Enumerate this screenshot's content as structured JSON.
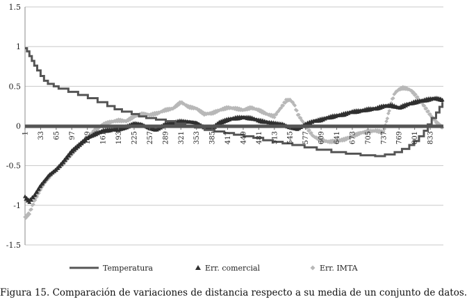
{
  "caption": "Figura 15. Comparación de variaciones de distancia respecto a su media de un conjunto de datos.",
  "chart_data": {
    "type": "line",
    "title": "",
    "xlabel": "",
    "ylabel": "",
    "ylim": [
      -1.5,
      1.5
    ],
    "yticks": [
      "1.5",
      "1",
      "0.5",
      "0",
      "-0.5",
      "-1",
      "-1.5"
    ],
    "xlim": [
      1,
      860
    ],
    "xticks": [
      "1",
      "33",
      "65",
      "97",
      "129",
      "161",
      "193",
      "225",
      "257",
      "289",
      "321",
      "353",
      "385",
      "417",
      "449",
      "481",
      "513",
      "545",
      "577",
      "609",
      "641",
      "673",
      "705",
      "737",
      "769",
      "801",
      "833"
    ],
    "grid": "horizontal",
    "legend": "bottom",
    "colors": {
      "temperatura": "#555555",
      "comercial": "#2f2f2f",
      "imta": "#b8b8b8",
      "baseline": "#555555"
    },
    "series": [
      {
        "name": "Temperatura",
        "marker": "line",
        "points": [
          [
            1,
            0.98
          ],
          [
            5,
            0.94
          ],
          [
            10,
            0.88
          ],
          [
            15,
            0.82
          ],
          [
            20,
            0.76
          ],
          [
            26,
            0.7
          ],
          [
            33,
            0.63
          ],
          [
            40,
            0.57
          ],
          [
            48,
            0.53
          ],
          [
            60,
            0.5
          ],
          [
            70,
            0.47
          ],
          [
            90,
            0.43
          ],
          [
            110,
            0.39
          ],
          [
            130,
            0.35
          ],
          [
            150,
            0.3
          ],
          [
            170,
            0.25
          ],
          [
            185,
            0.21
          ],
          [
            200,
            0.18
          ],
          [
            220,
            0.15
          ],
          [
            235,
            0.12
          ],
          [
            250,
            0.1
          ],
          [
            270,
            0.08
          ],
          [
            290,
            0.06
          ],
          [
            310,
            0.03
          ],
          [
            330,
            0.0
          ],
          [
            350,
            -0.02
          ],
          [
            370,
            -0.05
          ],
          [
            390,
            -0.07
          ],
          [
            410,
            -0.09
          ],
          [
            430,
            -0.11
          ],
          [
            450,
            -0.13
          ],
          [
            470,
            -0.15
          ],
          [
            490,
            -0.18
          ],
          [
            510,
            -0.2
          ],
          [
            530,
            -0.22
          ],
          [
            550,
            -0.24
          ],
          [
            575,
            -0.27
          ],
          [
            600,
            -0.3
          ],
          [
            630,
            -0.33
          ],
          [
            660,
            -0.35
          ],
          [
            690,
            -0.37
          ],
          [
            720,
            -0.38
          ],
          [
            740,
            -0.36
          ],
          [
            760,
            -0.33
          ],
          [
            775,
            -0.29
          ],
          [
            790,
            -0.24
          ],
          [
            800,
            -0.19
          ],
          [
            810,
            -0.13
          ],
          [
            820,
            -0.06
          ],
          [
            828,
            0.02
          ],
          [
            836,
            0.1
          ],
          [
            845,
            0.17
          ],
          [
            852,
            0.24
          ],
          [
            858,
            0.3
          ]
        ]
      },
      {
        "name": "Err. comercial",
        "marker": "triangle",
        "points": [
          [
            1,
            -0.9
          ],
          [
            10,
            -0.95
          ],
          [
            20,
            -0.88
          ],
          [
            33,
            -0.75
          ],
          [
            50,
            -0.62
          ],
          [
            65,
            -0.55
          ],
          [
            80,
            -0.45
          ],
          [
            97,
            -0.32
          ],
          [
            110,
            -0.25
          ],
          [
            129,
            -0.15
          ],
          [
            145,
            -0.1
          ],
          [
            161,
            -0.06
          ],
          [
            175,
            -0.05
          ],
          [
            193,
            -0.04
          ],
          [
            210,
            -0.01
          ],
          [
            225,
            0.03
          ],
          [
            240,
            0.02
          ],
          [
            257,
            -0.03
          ],
          [
            270,
            -0.05
          ],
          [
            289,
            0.02
          ],
          [
            305,
            0.04
          ],
          [
            321,
            0.06
          ],
          [
            340,
            0.05
          ],
          [
            353,
            0.04
          ],
          [
            370,
            -0.02
          ],
          [
            385,
            -0.03
          ],
          [
            400,
            0.04
          ],
          [
            417,
            0.08
          ],
          [
            433,
            0.1
          ],
          [
            449,
            0.11
          ],
          [
            465,
            0.1
          ],
          [
            481,
            0.07
          ],
          [
            497,
            0.05
          ],
          [
            513,
            0.03
          ],
          [
            530,
            0.02
          ],
          [
            545,
            -0.02
          ],
          [
            560,
            -0.04
          ],
          [
            577,
            0.02
          ],
          [
            593,
            0.06
          ],
          [
            609,
            0.08
          ],
          [
            625,
            0.11
          ],
          [
            641,
            0.13
          ],
          [
            657,
            0.15
          ],
          [
            673,
            0.18
          ],
          [
            689,
            0.19
          ],
          [
            705,
            0.21
          ],
          [
            721,
            0.22
          ],
          [
            737,
            0.25
          ],
          [
            753,
            0.26
          ],
          [
            769,
            0.23
          ],
          [
            785,
            0.27
          ],
          [
            801,
            0.3
          ],
          [
            817,
            0.32
          ],
          [
            833,
            0.34
          ],
          [
            845,
            0.35
          ],
          [
            858,
            0.33
          ]
        ]
      },
      {
        "name": "Err. IMTA",
        "marker": "diamond",
        "points": [
          [
            1,
            -1.16
          ],
          [
            10,
            -1.1
          ],
          [
            20,
            -0.95
          ],
          [
            33,
            -0.8
          ],
          [
            45,
            -0.68
          ],
          [
            65,
            -0.55
          ],
          [
            81,
            -0.47
          ],
          [
            97,
            -0.35
          ],
          [
            113,
            -0.25
          ],
          [
            129,
            -0.15
          ],
          [
            145,
            -0.05
          ],
          [
            161,
            0.02
          ],
          [
            177,
            0.05
          ],
          [
            193,
            0.07
          ],
          [
            209,
            0.06
          ],
          [
            225,
            0.12
          ],
          [
            241,
            0.15
          ],
          [
            257,
            0.14
          ],
          [
            273,
            0.16
          ],
          [
            289,
            0.2
          ],
          [
            305,
            0.22
          ],
          [
            321,
            0.3
          ],
          [
            337,
            0.24
          ],
          [
            353,
            0.22
          ],
          [
            369,
            0.15
          ],
          [
            385,
            0.16
          ],
          [
            401,
            0.2
          ],
          [
            417,
            0.23
          ],
          [
            433,
            0.22
          ],
          [
            449,
            0.2
          ],
          [
            465,
            0.23
          ],
          [
            481,
            0.2
          ],
          [
            497,
            0.15
          ],
          [
            513,
            0.12
          ],
          [
            529,
            0.25
          ],
          [
            537,
            0.32
          ],
          [
            545,
            0.33
          ],
          [
            553,
            0.28
          ],
          [
            561,
            0.15
          ],
          [
            577,
            0.0
          ],
          [
            593,
            -0.13
          ],
          [
            609,
            -0.18
          ],
          [
            625,
            -0.2
          ],
          [
            641,
            -0.19
          ],
          [
            657,
            -0.17
          ],
          [
            673,
            -0.13
          ],
          [
            689,
            -0.09
          ],
          [
            705,
            -0.07
          ],
          [
            721,
            -0.06
          ],
          [
            737,
            -0.08
          ],
          [
            745,
            0.1
          ],
          [
            753,
            0.3
          ],
          [
            761,
            0.42
          ],
          [
            769,
            0.46
          ],
          [
            777,
            0.48
          ],
          [
            785,
            0.47
          ],
          [
            793,
            0.45
          ],
          [
            801,
            0.4
          ],
          [
            817,
            0.28
          ],
          [
            833,
            0.14
          ],
          [
            845,
            0.05
          ],
          [
            858,
            -0.02
          ]
        ]
      }
    ]
  }
}
